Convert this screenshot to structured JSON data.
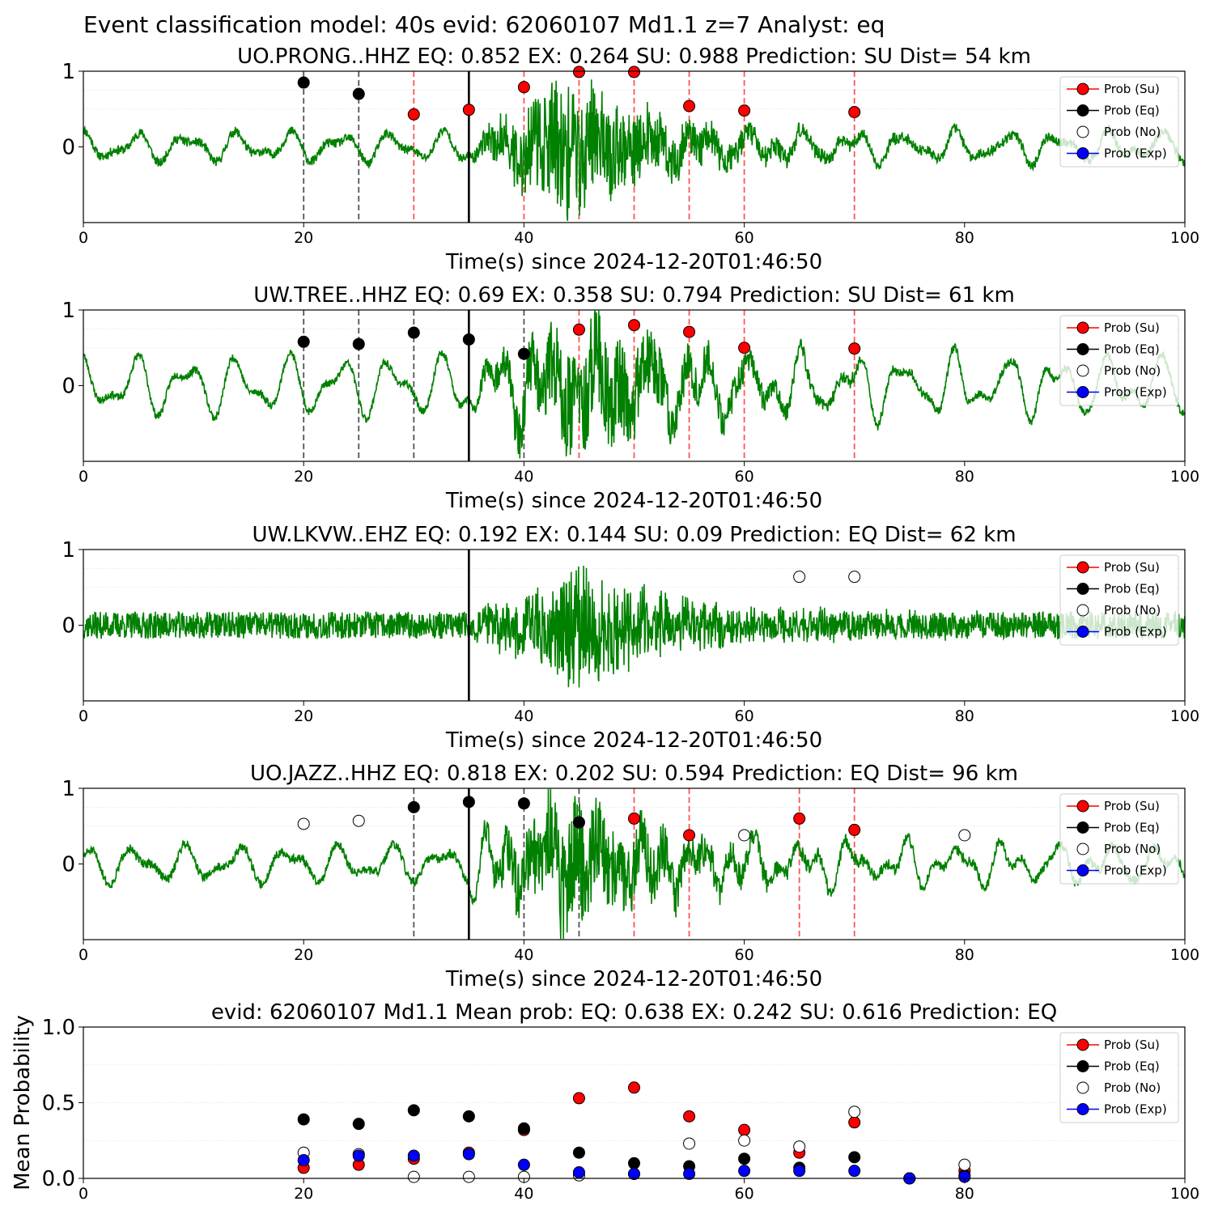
{
  "suptitle": "Event classification model: 40s evid: 62060107 Md1.1 z=7 Analyst: eq",
  "legend": {
    "entries": [
      {
        "label": "Prob (Su)",
        "color": "#ff0000"
      },
      {
        "label": "Prob (Eq)",
        "color": "#000000"
      },
      {
        "label": "Prob (No)",
        "color": "#ffffff"
      },
      {
        "label": "Prob (Exp)",
        "color": "#0000ff"
      }
    ]
  },
  "colors": {
    "waveform": "#008000",
    "su": "#ff0000",
    "eq": "#000000",
    "no": "#ffffff",
    "exp": "#0000ff",
    "su_line": "#ff5555",
    "eq_line": "#555555"
  },
  "chart_data": [
    {
      "type": "line",
      "title": "UO.PRONG..HHZ   EQ: 0.852  EX: 0.264  SU: 0.988   Prediction: SU    Dist= 54 km",
      "xlabel": "Time(s) since 2024-12-20T01:46:50",
      "xlim": [
        0,
        100
      ],
      "ylim": [
        -1,
        1
      ],
      "xticks": [
        "0",
        "20",
        "40",
        "60",
        "80",
        "100"
      ],
      "yticks": [
        "0",
        "1"
      ],
      "legend_position": "upper right",
      "arrival_time": 35,
      "waveform": {
        "noise_amp": 0.06,
        "onset": 35,
        "event_peak_time": 44,
        "event_amp": 0.9,
        "swell_amp": 0.2,
        "tail_amp": 0.1,
        "seed": 11
      },
      "markers": [
        {
          "x": 20,
          "y": 0.85,
          "class": "eq"
        },
        {
          "x": 25,
          "y": 0.7,
          "class": "eq"
        },
        {
          "x": 30,
          "y": 0.43,
          "class": "su"
        },
        {
          "x": 35,
          "y": 0.49,
          "class": "su"
        },
        {
          "x": 40,
          "y": 0.79,
          "class": "su"
        },
        {
          "x": 45,
          "y": 0.99,
          "class": "su"
        },
        {
          "x": 50,
          "y": 0.99,
          "class": "su"
        },
        {
          "x": 55,
          "y": 0.54,
          "class": "su"
        },
        {
          "x": 60,
          "y": 0.48,
          "class": "su"
        },
        {
          "x": 70,
          "y": 0.46,
          "class": "su"
        }
      ]
    },
    {
      "type": "line",
      "title": "UW.TREE..HHZ   EQ: 0.69  EX: 0.358  SU: 0.794   Prediction: SU    Dist= 61 km",
      "xlabel": "Time(s) since 2024-12-20T01:46:50",
      "xlim": [
        0,
        100
      ],
      "ylim": [
        -1,
        1
      ],
      "xticks": [
        "0",
        "20",
        "40",
        "60",
        "80",
        "100"
      ],
      "yticks": [
        "0",
        "1"
      ],
      "legend_position": "upper right",
      "arrival_time": 35,
      "waveform": {
        "noise_amp": 0.05,
        "onset": 35,
        "event_peak_time": 46,
        "event_amp": 0.8,
        "swell_amp": 0.4,
        "tail_amp": 0.25,
        "seed": 23
      },
      "markers": [
        {
          "x": 20,
          "y": 0.58,
          "class": "eq"
        },
        {
          "x": 25,
          "y": 0.55,
          "class": "eq"
        },
        {
          "x": 30,
          "y": 0.7,
          "class": "eq"
        },
        {
          "x": 35,
          "y": 0.61,
          "class": "eq"
        },
        {
          "x": 40,
          "y": 0.42,
          "class": "eq"
        },
        {
          "x": 45,
          "y": 0.74,
          "class": "su"
        },
        {
          "x": 50,
          "y": 0.8,
          "class": "su"
        },
        {
          "x": 55,
          "y": 0.71,
          "class": "su"
        },
        {
          "x": 60,
          "y": 0.5,
          "class": "su"
        },
        {
          "x": 70,
          "y": 0.49,
          "class": "su"
        }
      ]
    },
    {
      "type": "line",
      "title": "UW.LKVW..EHZ   EQ: 0.192  EX: 0.144  SU: 0.09   Prediction: EQ    Dist= 62 km",
      "xlabel": "Time(s) since 2024-12-20T01:46:50",
      "xlim": [
        0,
        100
      ],
      "ylim": [
        -1,
        1
      ],
      "xticks": [
        "0",
        "20",
        "40",
        "60",
        "80",
        "100"
      ],
      "yticks": [
        "0",
        "1"
      ],
      "legend_position": "upper right",
      "arrival_time": 35,
      "waveform": {
        "noise_amp": 0.18,
        "onset": 35,
        "event_peak_time": 45,
        "event_amp": 0.8,
        "swell_amp": 0.0,
        "tail_amp": 0.05,
        "seed": 37
      },
      "markers": [
        {
          "x": 65,
          "y": 0.64,
          "class": "no"
        },
        {
          "x": 70,
          "y": 0.64,
          "class": "no"
        }
      ]
    },
    {
      "type": "line",
      "title": "UO.JAZZ..HHZ   EQ: 0.818  EX: 0.202  SU: 0.594   Prediction: EQ    Dist= 96 km",
      "xlabel": "Time(s) since 2024-12-20T01:46:50",
      "xlim": [
        0,
        100
      ],
      "ylim": [
        -1,
        1
      ],
      "xticks": [
        "0",
        "20",
        "40",
        "60",
        "80",
        "100"
      ],
      "yticks": [
        "0",
        "1"
      ],
      "legend_position": "upper right",
      "arrival_time": 35,
      "waveform": {
        "noise_amp": 0.06,
        "onset": 35,
        "event_peak_time": 44,
        "event_amp": 0.85,
        "swell_amp": 0.25,
        "tail_amp": 0.3,
        "seed": 51
      },
      "markers": [
        {
          "x": 20,
          "y": 0.53,
          "class": "no"
        },
        {
          "x": 25,
          "y": 0.57,
          "class": "no"
        },
        {
          "x": 30,
          "y": 0.75,
          "class": "eq"
        },
        {
          "x": 35,
          "y": 0.82,
          "class": "eq"
        },
        {
          "x": 40,
          "y": 0.8,
          "class": "eq"
        },
        {
          "x": 45,
          "y": 0.55,
          "class": "eq"
        },
        {
          "x": 50,
          "y": 0.6,
          "class": "su"
        },
        {
          "x": 55,
          "y": 0.38,
          "class": "su"
        },
        {
          "x": 60,
          "y": 0.38,
          "class": "no"
        },
        {
          "x": 65,
          "y": 0.6,
          "class": "su"
        },
        {
          "x": 70,
          "y": 0.45,
          "class": "su"
        },
        {
          "x": 80,
          "y": 0.38,
          "class": "no"
        }
      ]
    },
    {
      "type": "scatter",
      "title": "evid: 62060107  Md1.1   Mean prob:   EQ: 0.638  EX: 0.242  SU: 0.616   Prediction: EQ",
      "xlabel": "",
      "ylabel": "Mean Probability",
      "xlim": [
        0,
        100
      ],
      "ylim": [
        0,
        1
      ],
      "xticks": [
        "0",
        "20",
        "40",
        "60",
        "80",
        "100"
      ],
      "yticks": [
        "0.0",
        "0.5",
        "1.0"
      ],
      "legend_position": "upper right",
      "series": [
        {
          "name": "Prob (Su)",
          "class": "su",
          "x": [
            20,
            25,
            30,
            35,
            40,
            45,
            50,
            55,
            60,
            65,
            70,
            75,
            80
          ],
          "y": [
            0.07,
            0.09,
            0.13,
            0.17,
            0.32,
            0.53,
            0.6,
            0.41,
            0.32,
            0.17,
            0.37,
            0.0,
            0.05
          ]
        },
        {
          "name": "Prob (Eq)",
          "class": "eq",
          "x": [
            20,
            25,
            30,
            35,
            40,
            45,
            50,
            55,
            60,
            65,
            70,
            75,
            80
          ],
          "y": [
            0.39,
            0.36,
            0.45,
            0.41,
            0.33,
            0.17,
            0.1,
            0.08,
            0.13,
            0.07,
            0.14,
            0.0,
            0.02
          ]
        },
        {
          "name": "Prob (No)",
          "class": "no",
          "x": [
            20,
            25,
            30,
            35,
            40,
            45,
            50,
            55,
            60,
            65,
            70,
            75,
            80
          ],
          "y": [
            0.17,
            0.16,
            0.01,
            0.01,
            0.01,
            0.02,
            0.03,
            0.23,
            0.25,
            0.21,
            0.44,
            0.0,
            0.09
          ]
        },
        {
          "name": "Prob (Exp)",
          "class": "exp",
          "x": [
            20,
            25,
            30,
            35,
            40,
            45,
            50,
            55,
            60,
            65,
            70,
            75,
            80
          ],
          "y": [
            0.12,
            0.15,
            0.15,
            0.16,
            0.09,
            0.04,
            0.03,
            0.03,
            0.05,
            0.05,
            0.05,
            0.0,
            0.01
          ]
        }
      ]
    }
  ]
}
